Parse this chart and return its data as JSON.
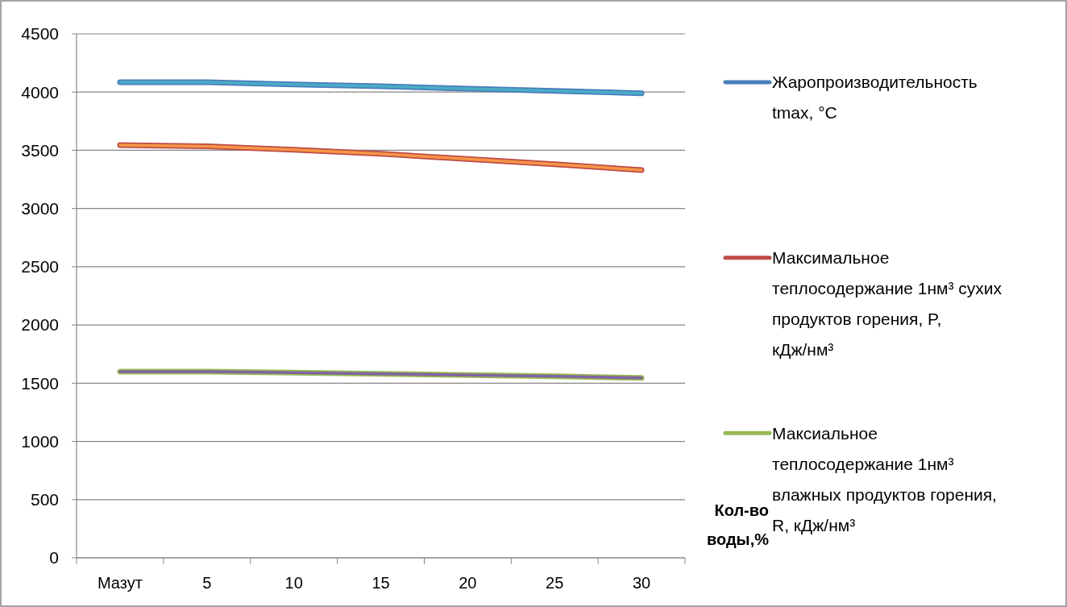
{
  "chart_data": {
    "type": "line",
    "categories": [
      "Мазут",
      "5",
      "10",
      "15",
      "20",
      "25",
      "30"
    ],
    "xlabel": "Кол-во воды,%",
    "ylim": [
      0,
      4500
    ],
    "yticks": [
      0,
      500,
      1000,
      1500,
      2000,
      2500,
      3000,
      3500,
      4000,
      4500
    ],
    "grid": "y",
    "legend": "right",
    "marker": "none",
    "line_style": "solid",
    "series": [
      {
        "name": "Жаропроизводительность tmax, °C",
        "color": "#4a7ebb",
        "values": [
          4085,
          4085,
          4065,
          4050,
          4030,
          4010,
          3990
        ]
      },
      {
        "name": "Максимальное теплосодержание 1нм³ сухих продуктов горения, P,   кДж/нм³",
        "color": "#be4b48",
        "values": [
          3545,
          3535,
          3505,
          3470,
          3425,
          3380,
          3330
        ]
      },
      {
        "name": "Максиальное теплосодержание 1нм³ влажных продуктов горения, R, кДж/нм³",
        "color": "#98b954",
        "values": [
          1600,
          1600,
          1590,
          1580,
          1570,
          1560,
          1545
        ]
      },
      {
        "color": "#4bacc6",
        "values": [
          4085,
          4085,
          4065,
          4050,
          4030,
          4010,
          3990
        ]
      },
      {
        "color": "#f79646",
        "values": [
          3545,
          3535,
          3505,
          3470,
          3425,
          3380,
          3330
        ]
      },
      {
        "color": "#8064a2",
        "values": [
          1600,
          1600,
          1590,
          1580,
          1570,
          1560,
          1545
        ]
      }
    ]
  }
}
